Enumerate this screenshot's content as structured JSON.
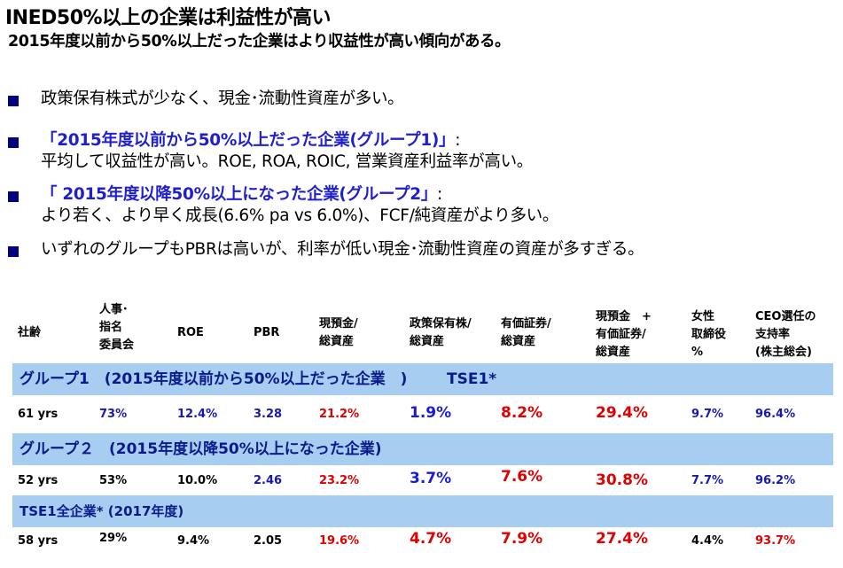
{
  "title": "INED50%以上の企業は利益性が高い",
  "subtitle": "2015年度以前から50%以上だった企業はより収益性が高い傾向がある。",
  "bullets": {
    "b1": "政策保有株式が少なく、現金･流動性資産が多い。",
    "b2_highlight": "「2015年度以前から50%以上だった企業(グループ1)」",
    "b2_colon": ":",
    "b2_cont": "平均して収益性が高い。ROE, ROA, ROIC, 営業資産利益率が高い。",
    "b3_highlight": "「 2015年度以降50%以上になった企業(グループ2」",
    "b3_colon": ":",
    "b3_cont": "より若く、より早く成長(6.6% pa vs 6.0%)、FCF/純資産がより多い。",
    "b4": "いずれのグループもPBRは高いが、利率が低い現金･流動性資産の資産が多すぎる。"
  },
  "table": {
    "headers": {
      "age": "社齢",
      "committee_l1": "人事･",
      "committee_l2": "指名",
      "committee_l3": "委員会",
      "roe": "ROE",
      "pbr": "PBR",
      "cash_l1": "現預金/",
      "cash_l2": "総資産",
      "policy_l1": "政策保有株/",
      "policy_l2": "総資産",
      "securities_l1": "有価証券/",
      "securities_l2": "総資産",
      "cashsec_l1": "現預金　+",
      "cashsec_l2": "有価証券/",
      "cashsec_l3": "総資産",
      "female_l1": "女性",
      "female_l2": "取締役",
      "female_l3": "%",
      "ceo_l1": "CEO選任の",
      "ceo_l2": "支持率",
      "ceo_l3": "(株主総会)"
    },
    "group1": {
      "label": "グループ1　(2015年度以前から50%以上だった企業　)",
      "tag": "TSE1*",
      "age": "61 yrs",
      "committee": "73%",
      "roe": "12.4%",
      "pbr": "3.28",
      "cash": "21.2%",
      "policy": "1.9%",
      "securities": "8.2%",
      "cashsec": "29.4%",
      "female": "9.7%",
      "ceo": "96.4%"
    },
    "group2": {
      "label": "グループ２　(2015年度以降50%以上になった企業)",
      "age": "52 yrs",
      "committee": "53%",
      "roe": "10.0%",
      "pbr": "2.46",
      "cash": "23.2%",
      "policy": "3.7%",
      "securities": "7.6%",
      "cashsec": "30.8%",
      "female": "7.7%",
      "ceo": "96.2%"
    },
    "tse1": {
      "label": "TSE1全企業* (2017年度)",
      "age": "58 yrs",
      "committee": "29%",
      "roe": "9.4%",
      "pbr": "2.05",
      "cash": "19.6%",
      "policy": "4.7%",
      "securities": "7.9%",
      "cashsec": "27.4%",
      "female": "4.4%",
      "ceo": "93.7%"
    }
  },
  "colors": {
    "band": "#a7cef0",
    "bullet_square": "#000080",
    "highlight_blue": "#1f1fd0",
    "red": "#e00000"
  }
}
